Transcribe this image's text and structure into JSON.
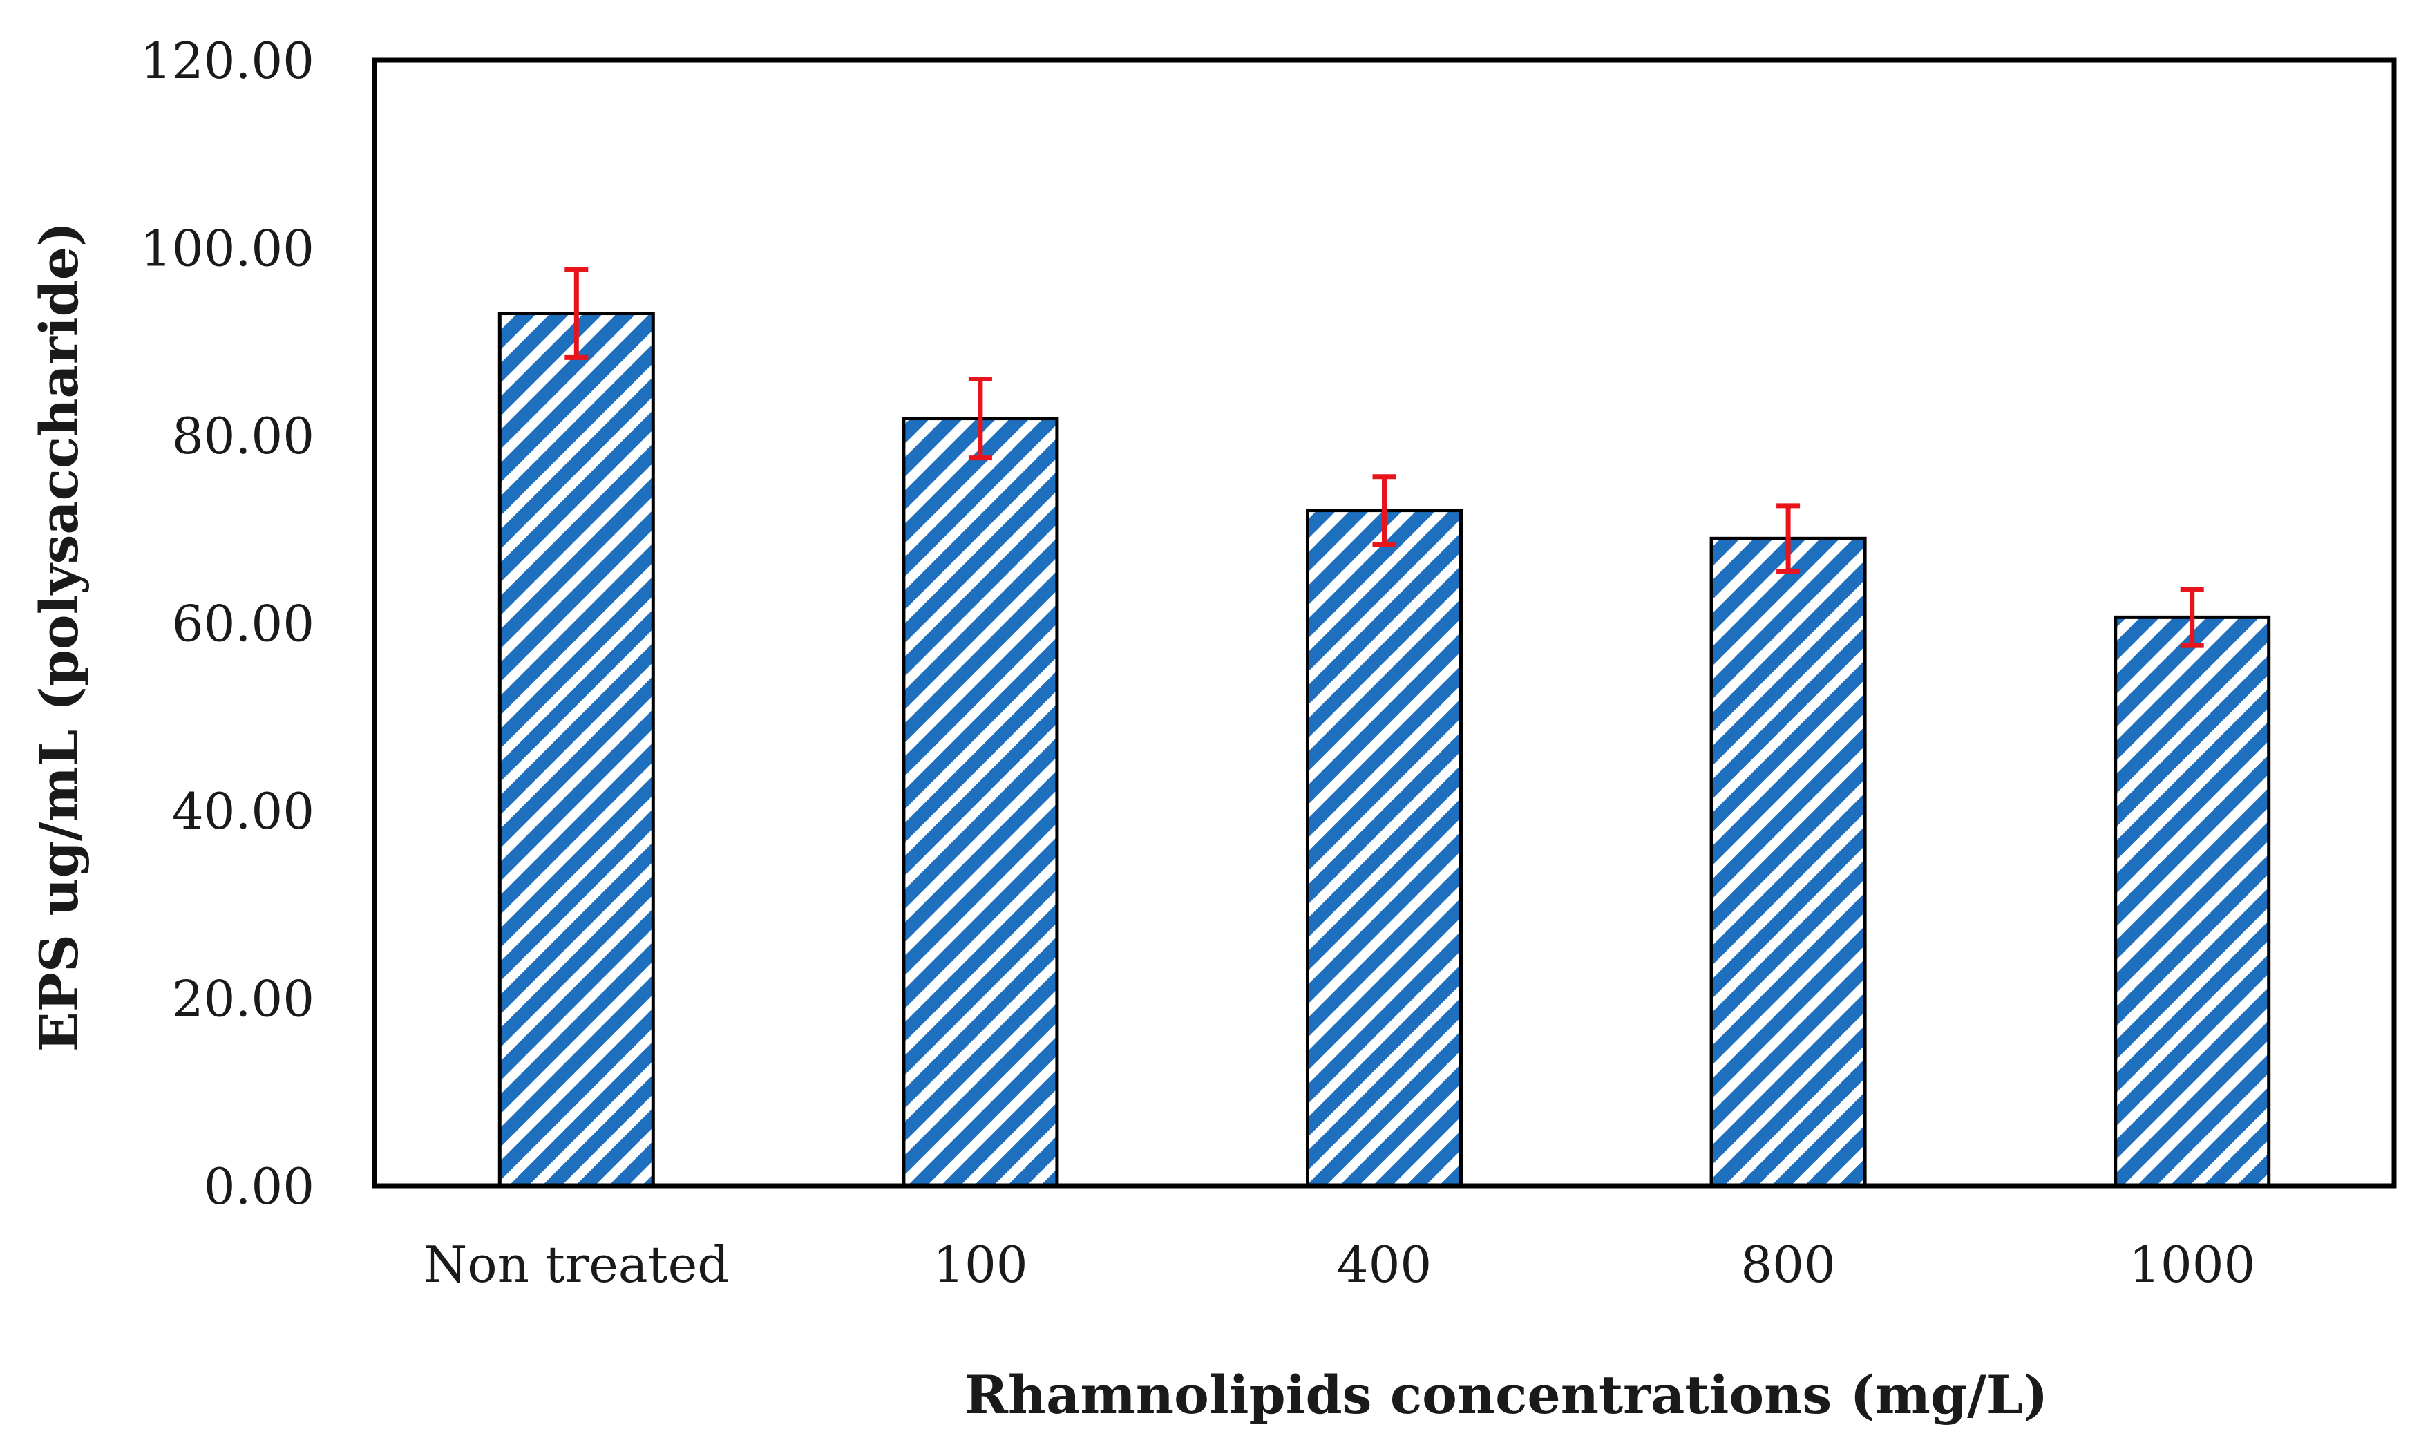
{
  "chart_data": {
    "type": "bar",
    "title": "",
    "categories": [
      "Non treated",
      "100",
      "400",
      "800",
      "1000"
    ],
    "values": [
      93.0,
      81.8,
      72.0,
      69.0,
      60.6
    ],
    "errors": [
      4.7,
      4.2,
      3.6,
      3.5,
      3.0
    ],
    "xlabel": "Rhamnolipids concentrations (mg/L)",
    "ylabel": "EPS  ug/mL (polysaccharide)",
    "ylim": [
      0,
      120
    ],
    "yticks": [
      "0.00",
      "20.00",
      "40.00",
      "60.00",
      "80.00",
      "100.00",
      "120.00"
    ],
    "ytick_values": [
      0,
      20,
      40,
      60,
      80,
      100,
      120
    ],
    "grid": false,
    "legend": "none",
    "bar_fill_pattern": "diagonal-stripes",
    "colors": {
      "bar_stripe": "#1f6fbf",
      "bar_background": "#ffffff",
      "bar_outline": "#000000",
      "error_bar": "#e8141b",
      "axis": "#000000",
      "text": "#1a1a1a"
    }
  }
}
